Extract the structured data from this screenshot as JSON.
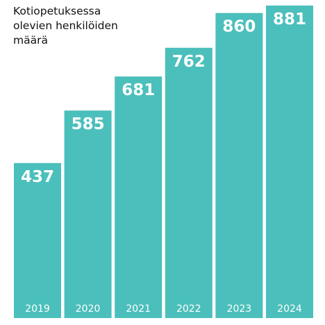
{
  "chart_data": {
    "type": "bar",
    "title": "Kotiopetuksessa olevien henkilöiden määrä",
    "categories": [
      "2019",
      "2020",
      "2021",
      "2022",
      "2023",
      "2024"
    ],
    "values": [
      437,
      585,
      681,
      762,
      860,
      881
    ],
    "color": "#4bbfbb"
  }
}
